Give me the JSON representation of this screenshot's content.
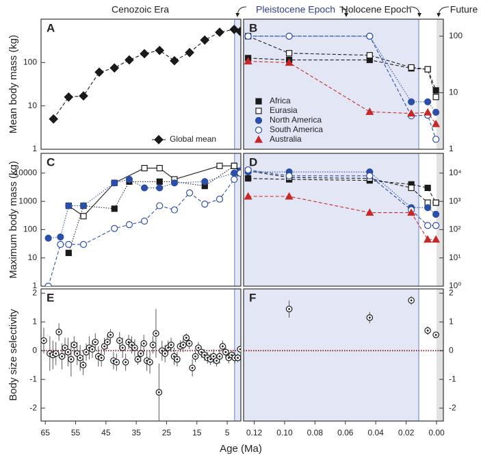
{
  "figure": {
    "eras": [
      "Cenozoic Era",
      "Pleistocene Epoch",
      "Holocene Epoch",
      "Future"
    ],
    "xlabel": "Age (Ma)"
  },
  "chart_data": [
    {
      "panel": "A",
      "type": "line",
      "ylabel": "Mean body mass (kg)",
      "xlim": [
        66.4,
        0.5
      ],
      "ylim": [
        1,
        1000
      ],
      "yticks": [
        1,
        10,
        100
      ],
      "log_y": true,
      "legend": "lower right",
      "bands": [
        {
          "from": 2.58,
          "to": 0.5,
          "color": "#e3e6f5",
          "edge": "#7b8fd6"
        }
      ],
      "series": [
        {
          "name": "Global mean",
          "color": "#1a1a1a",
          "marker": "diamond",
          "filled": true,
          "line": "dashed",
          "x": [
            62.3,
            57.3,
            52.4,
            47.2,
            42.2,
            37.3,
            32.3,
            27.3,
            22.4,
            17.4,
            12.4,
            7.5,
            2.7,
            0.7
          ],
          "values": [
            5,
            16,
            17,
            60,
            75,
            115,
            160,
            190,
            110,
            170,
            330,
            500,
            580,
            520
          ]
        }
      ]
    },
    {
      "panel": "B",
      "type": "line",
      "xlim": [
        0.127,
        -0.0045
      ],
      "ylim": [
        1,
        200
      ],
      "yticks": [
        1,
        10,
        100
      ],
      "log_y": true,
      "legend": "lower left",
      "bands": [
        {
          "from": 0.127,
          "to": 0.0117,
          "color": "#e3e6f5",
          "edge": "#7b8fd6"
        },
        {
          "from": 0,
          "to": -0.0045,
          "color": "#e2e2e2"
        }
      ],
      "x": [
        0.124,
        0.097,
        0.044,
        0.0166,
        0.0058,
        0.0004
      ],
      "series": [
        {
          "name": "Africa",
          "color": "#1a1a1a",
          "marker": "square",
          "filled": true,
          "line": "dashed",
          "values": [
            41,
            38,
            38,
            27,
            26,
            11
          ]
        },
        {
          "name": "Eurasia",
          "color": "#1a1a1a",
          "marker": "square",
          "filled": false,
          "line": "dashed",
          "values": [
            100,
            50,
            46,
            28,
            26,
            8.4
          ]
        },
        {
          "name": "North America",
          "color": "#2b4fa8",
          "marker": "circle",
          "filled": true,
          "line": "dotted",
          "values": [
            100,
            100,
            100,
            6.9,
            6.9,
            4.5
          ]
        },
        {
          "name": "South America",
          "color": "#2b4fa8",
          "marker": "circle",
          "filled": false,
          "line": "dashed",
          "values": [
            100,
            100,
            100,
            3.9,
            4,
            1.5
          ]
        },
        {
          "name": "Australia",
          "color": "#c62828",
          "marker": "triangle",
          "filled": true,
          "line": "dashed",
          "values": [
            36,
            34,
            4.6,
            4.3,
            4.5,
            2.8
          ]
        }
      ]
    },
    {
      "panel": "C",
      "type": "line",
      "ylabel": "Maximum body mass (kg)",
      "xlim": [
        66.4,
        0.5
      ],
      "ylim": [
        1,
        50000
      ],
      "yticks": [
        1,
        10,
        100,
        1000,
        10000
      ],
      "log_y": true,
      "bands": [
        {
          "from": 2.58,
          "to": 0.5,
          "color": "#e3e6f5",
          "edge": "#7b8fd6"
        }
      ],
      "series": [
        {
          "color": "#1a1a1a",
          "marker": "square",
          "filled": true,
          "line": "dotted",
          "x": [
            57.3,
            52.4,
            42.2,
            37.3,
            27.3,
            22.4,
            12.4,
            2.7,
            0.7
          ],
          "values": [
            15,
            700,
            550,
            5000,
            5000,
            5000,
            3500,
            18000,
            12000
          ]
        },
        {
          "color": "#1a1a1a",
          "marker": "square",
          "filled": false,
          "line": "solid",
          "x": [
            57.3,
            52.4,
            42.2,
            32.3,
            27.3,
            22.4,
            7.5,
            2.7,
            0.7
          ],
          "values": [
            700,
            300,
            4500,
            15000,
            15000,
            6000,
            18000,
            18000,
            10000
          ]
        },
        {
          "color": "#2b4fa8",
          "marker": "circle",
          "filled": true,
          "line": "dotted",
          "x": [
            64,
            60,
            57.3,
            52.4,
            42.2,
            37.3,
            32.3,
            27.3,
            22.4,
            12.4,
            2.7,
            0.7
          ],
          "values": [
            50,
            55,
            700,
            700,
            4500,
            6000,
            3000,
            3000,
            4500,
            5000,
            10000,
            12000
          ]
        },
        {
          "color": "#2b4fa8",
          "marker": "circle",
          "filled": false,
          "line": "dashed",
          "x": [
            64,
            60,
            57.3,
            52.4,
            42.2,
            37.3,
            32.3,
            27.3,
            22.4,
            17.4,
            12.4,
            7.5,
            2.7,
            0.7
          ],
          "values": [
            1,
            30,
            30,
            30,
            110,
            150,
            200,
            700,
            500,
            2000,
            800,
            1200,
            6000,
            10000
          ]
        }
      ]
    },
    {
      "panel": "D",
      "type": "line",
      "xlim": [
        0.127,
        -0.0045
      ],
      "ylim": [
        1,
        50000
      ],
      "log_y": true,
      "yticks": [
        {
          "value": 1,
          "label": "10⁰"
        },
        {
          "value": 10,
          "label": "10¹"
        },
        {
          "value": 100,
          "label": "10²"
        },
        {
          "value": 1000,
          "label": "10³"
        },
        {
          "value": 10000,
          "label": "10⁴"
        }
      ],
      "bands": [
        {
          "from": 0.127,
          "to": 0.0117,
          "color": "#e3e6f5",
          "edge": "#7b8fd6"
        },
        {
          "from": 0,
          "to": -0.0045,
          "color": "#e2e2e2"
        }
      ],
      "x": [
        0.124,
        0.097,
        0.044,
        0.0166,
        0.0058,
        0.0004
      ],
      "series": [
        {
          "color": "#1a1a1a",
          "marker": "square",
          "filled": true,
          "line": "dashed",
          "values": [
            6500,
            6000,
            5500,
            4000,
            3000,
            900
          ]
        },
        {
          "color": "#1a1a1a",
          "marker": "square",
          "filled": false,
          "line": "dashed",
          "values": [
            12000,
            7000,
            6500,
            3000,
            900,
            900
          ]
        },
        {
          "color": "#2b4fa8",
          "marker": "circle",
          "filled": true,
          "line": "dotted",
          "values": [
            11000,
            11000,
            11000,
            600,
            600,
            350
          ]
        },
        {
          "color": "#2b4fa8",
          "marker": "circle",
          "filled": false,
          "line": "dashed",
          "values": [
            13000,
            8000,
            8000,
            500,
            140,
            140
          ]
        },
        {
          "color": "#c62828",
          "marker": "triangle",
          "filled": true,
          "line": "dashed",
          "values": [
            1500,
            1500,
            400,
            400,
            45,
            45
          ]
        }
      ]
    },
    {
      "panel": "E",
      "type": "scatter",
      "ylabel": "Body size selectivity",
      "xlim": [
        66.4,
        0.5
      ],
      "ylim": [
        -2.45,
        2.15
      ],
      "yticks": [
        -2,
        -1,
        0,
        1,
        2
      ],
      "xticks": [
        65,
        55,
        45,
        35,
        25,
        15,
        5
      ],
      "reference_line": {
        "y": 0,
        "color": "#8b1a1a"
      },
      "bands": [
        {
          "from": 2.58,
          "to": 0.5,
          "color": "#e3e6f5",
          "edge": "#7b8fd6"
        }
      ],
      "series": [
        {
          "color": "#1a1a1a",
          "marker": "dotcircle",
          "line": "none",
          "x": [
            65.5,
            63.5,
            62.5,
            61.5,
            60.5,
            59.5,
            58.5,
            57.5,
            56.5,
            55.5,
            54.5,
            53.5,
            52.5,
            51.5,
            50.5,
            49.5,
            48.5,
            47.5,
            46.5,
            45.5,
            44.5,
            43.5,
            42.5,
            41.5,
            40.5,
            39.5,
            38.5,
            37.5,
            36.5,
            35.5,
            34.5,
            33.5,
            32.5,
            31.5,
            30.5,
            29.5,
            28.5,
            27.5,
            26.5,
            25.5,
            24.5,
            23.5,
            22.5,
            21.5,
            20.5,
            19.5,
            18.5,
            17.5,
            16.5,
            15.5,
            14.5,
            13.5,
            12.5,
            11.5,
            10.5,
            9.5,
            8.5,
            7.5,
            6.5,
            5.5,
            4.5,
            3.5,
            2.5,
            1.5,
            0.7
          ],
          "values": [
            0.35,
            -0.1,
            -0.15,
            -0.1,
            0.65,
            -0.2,
            0.1,
            -0.05,
            -0.3,
            0.2,
            -0.1,
            -0.25,
            -0.5,
            -0.05,
            0.1,
            0.05,
            0.3,
            -0.2,
            -0.25,
            0.15,
            0.3,
            0.55,
            -0.35,
            -0.4,
            0.35,
            0.1,
            -0.4,
            0.3,
            0.2,
            0.1,
            -0.3,
            -0.1,
            0.25,
            -0.35,
            -0.4,
            0.2,
            0.6,
            -1.45,
            0,
            -0.1,
            0.1,
            0.2,
            -0.2,
            -0.3,
            0.15,
            0.2,
            0.45,
            0.25,
            -0.6,
            -0.2,
            0.1,
            -0.05,
            -0.15,
            -0.25,
            -0.3,
            -0.2,
            -0.35,
            -0.2,
            0.15,
            -0.05,
            -0.25,
            -0.15,
            -0.25,
            -0.25,
            0.05
          ],
          "errors": [
            0.45,
            0.6,
            0.5,
            0.4,
            0.3,
            0.45,
            0.35,
            0.5,
            0.6,
            0.3,
            0.4,
            0.45,
            0.35,
            0.3,
            0.4,
            0.3,
            0.3,
            0.35,
            0.3,
            0.3,
            0.25,
            0.2,
            0.3,
            0.3,
            0.3,
            0.35,
            0.3,
            0.25,
            0.3,
            0.3,
            0.2,
            0.3,
            0.3,
            0.35,
            0.4,
            0.3,
            0.85,
            1.0,
            0.35,
            0.3,
            0.25,
            0.25,
            0.3,
            0.25,
            0.2,
            0.25,
            0.15,
            0.2,
            0.3,
            0.2,
            0.2,
            0.2,
            0.2,
            0.2,
            0.2,
            0.25,
            0.2,
            0.25,
            0.2,
            0.2,
            0.2,
            0.15,
            0.2,
            0.15,
            0.1
          ]
        }
      ]
    },
    {
      "panel": "F",
      "type": "scatter",
      "xlim": [
        0.127,
        -0.0045
      ],
      "ylim": [
        -2.45,
        2.15
      ],
      "yticks": [
        -2,
        -1,
        0,
        1,
        2
      ],
      "xticks": [
        0.12,
        {
          "value": 0.1,
          "label": "0.10"
        },
        0.08,
        0.06,
        0.04,
        0.02,
        {
          "value": 0,
          "label": "0.00"
        }
      ],
      "reference_line": {
        "y": 0,
        "color": "#8b1a1a"
      },
      "bands": [
        {
          "from": 0.127,
          "to": 0.0117,
          "color": "#e3e6f5",
          "edge": "#7b8fd6"
        },
        {
          "from": 0,
          "to": -0.0045,
          "color": "#e2e2e2"
        }
      ],
      "series": [
        {
          "color": "#1a1a1a",
          "marker": "dotcircle",
          "line": "none",
          "x": [
            0.097,
            0.044,
            0.0166,
            0.0058,
            0.0004
          ],
          "values": [
            1.45,
            1.15,
            1.75,
            0.7,
            0.55
          ],
          "errors": [
            0.3,
            0.2,
            0.15,
            0.15,
            0.05
          ]
        }
      ]
    }
  ]
}
